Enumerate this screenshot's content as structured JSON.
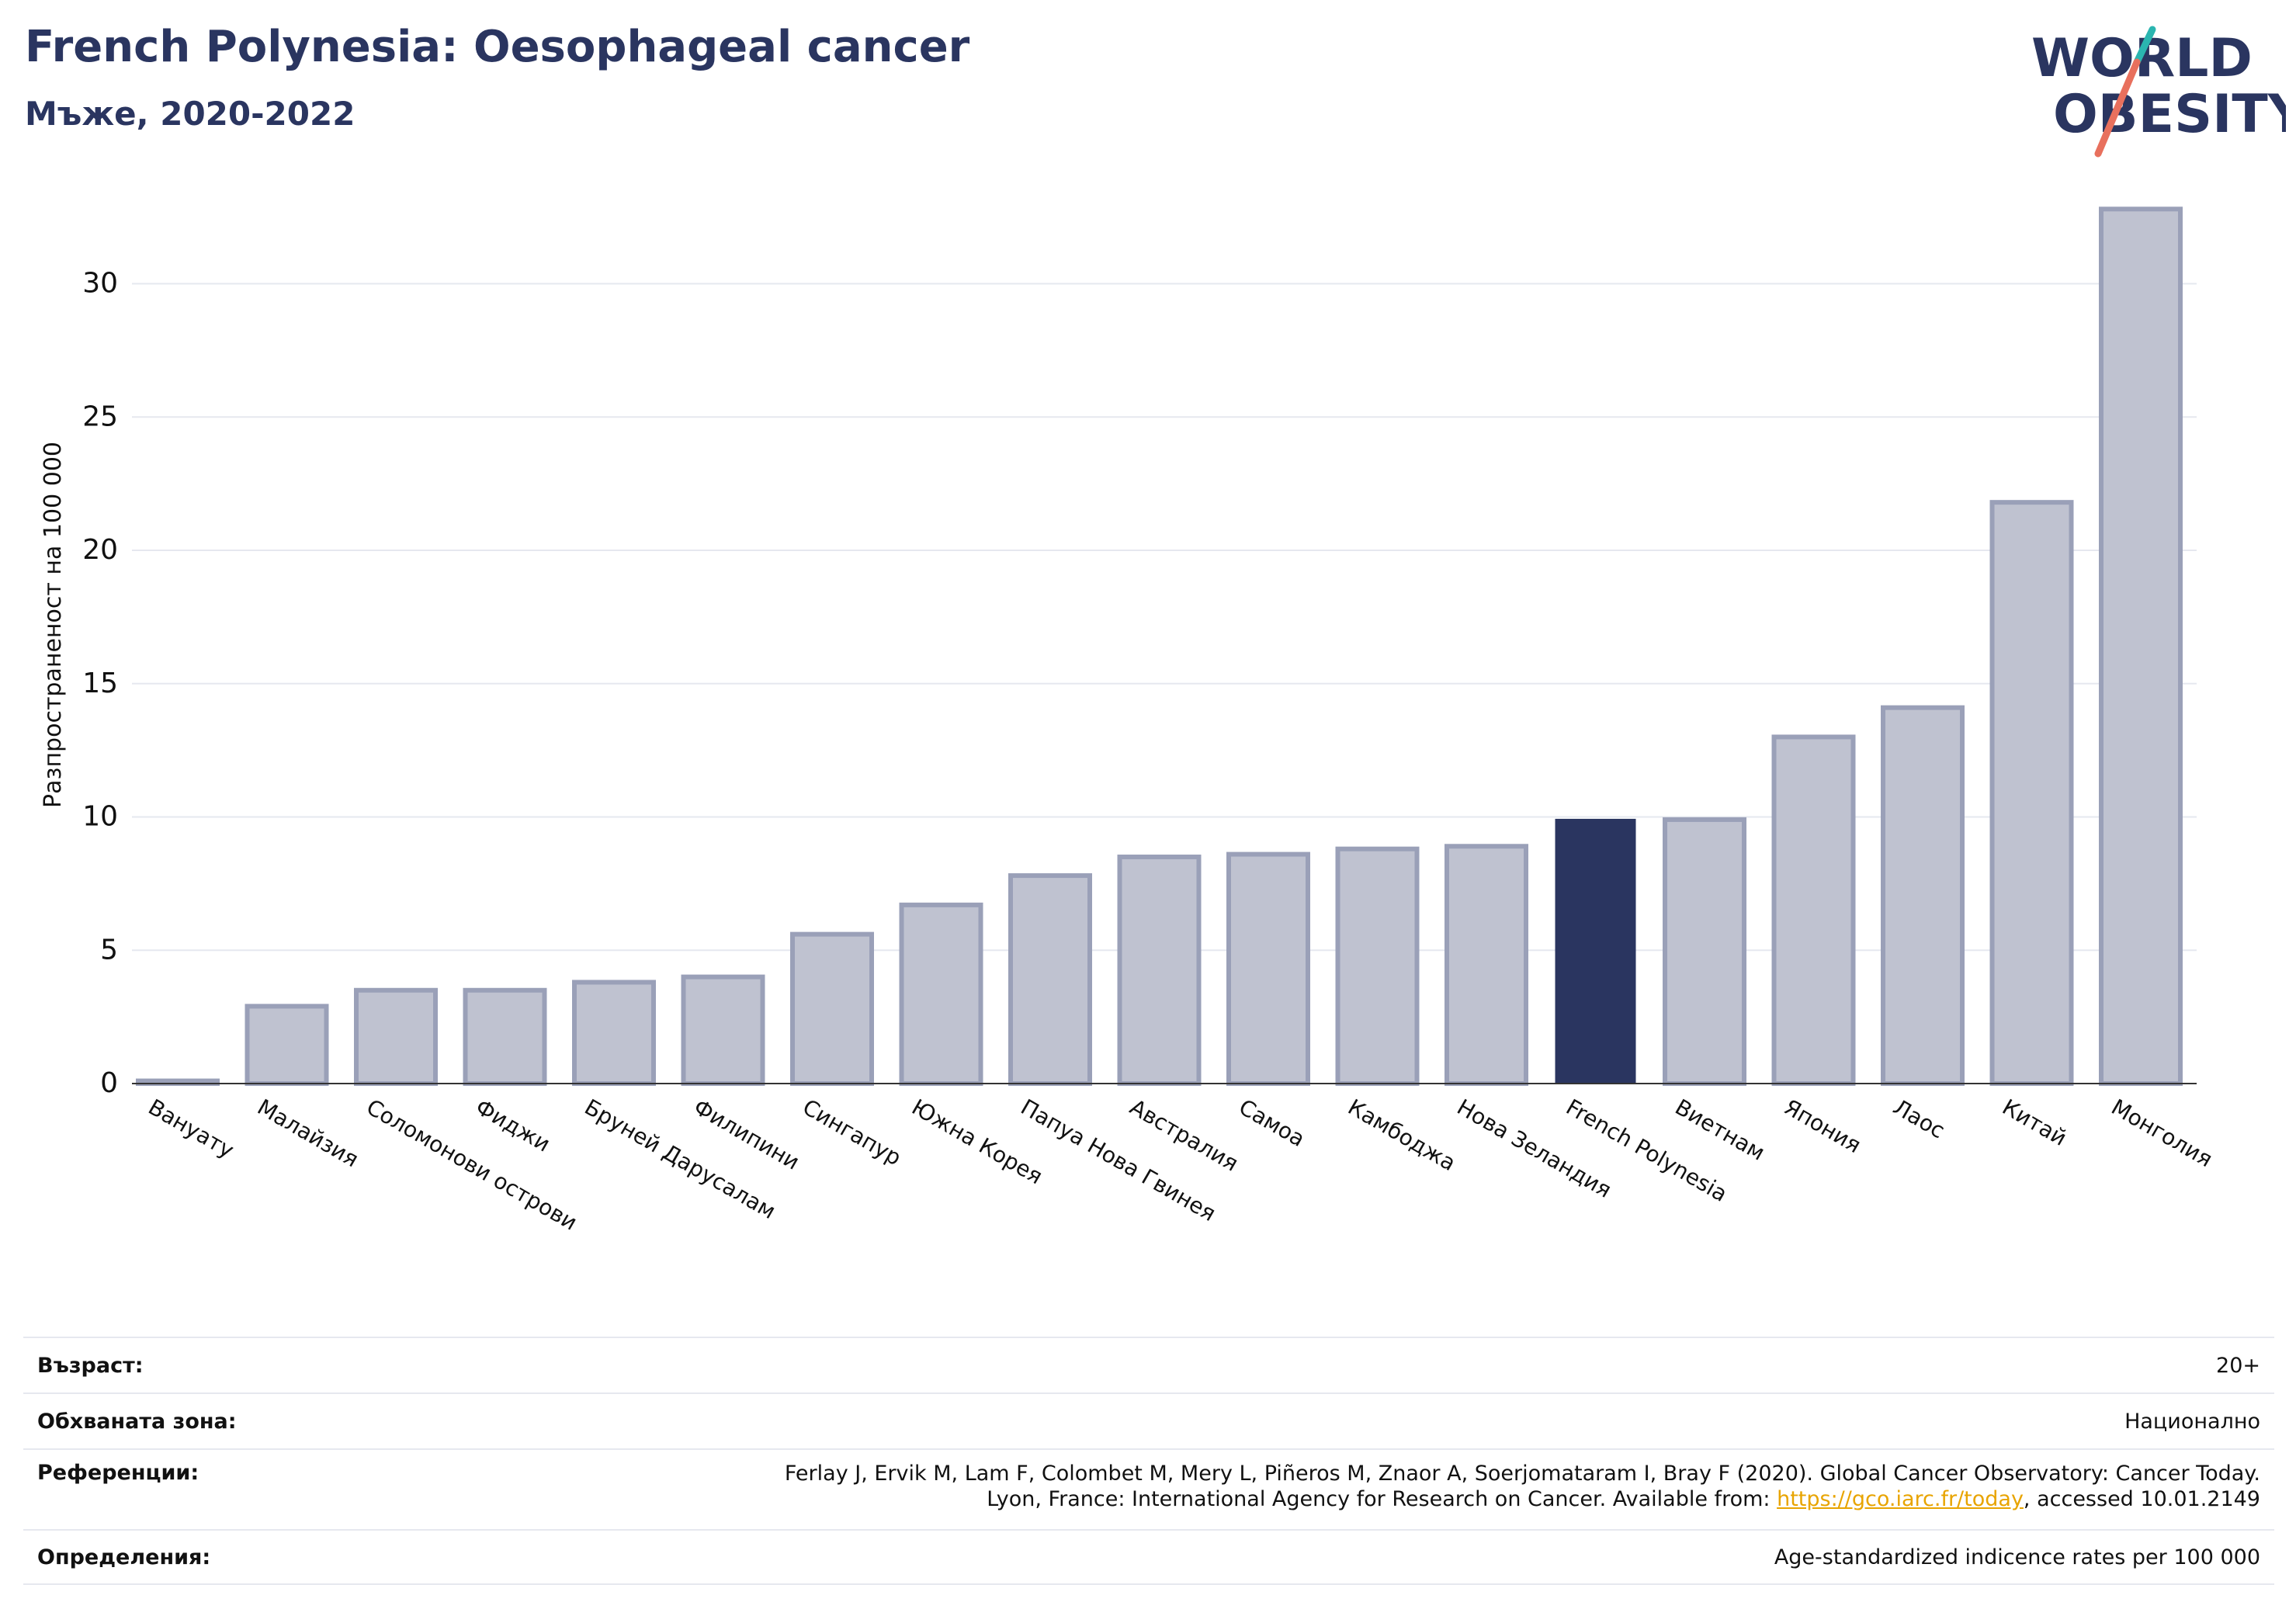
{
  "title": "French Polynesia: Oesophageal cancer",
  "subtitle": "Мъже, 2020-2022",
  "logo": {
    "line1": "WORLD",
    "line2": "OBESITY"
  },
  "colors": {
    "title": "#2a3560",
    "bar": "#bfc2d0",
    "bar_border": "#9aa0b8",
    "highlight": "#2a3560",
    "grid": "#e6e8ef",
    "logo_teal": "#2bb5b0",
    "logo_coral": "#e8705d",
    "link": "#e8a400"
  },
  "chart_data": {
    "type": "bar",
    "ylabel": "Разпространеност  на 100 000",
    "ylim": [
      0,
      33
    ],
    "yticks": [
      0,
      5,
      10,
      15,
      20,
      25,
      30
    ],
    "grid": true,
    "categories": [
      "Вануату",
      "Малайзия",
      "Соломонови острови",
      "Фиджи",
      "Бруней Дарусалам",
      "Филипини",
      "Сингапур",
      "Южна Корея",
      "Папуа Нова Гвинея",
      "Австралия",
      "Самоа",
      "Камбоджа",
      "Нова Зеландия",
      "French Polynesia",
      "Виетнам",
      "Япония",
      "Лаос",
      "Китай",
      "Монголия"
    ],
    "values": [
      0.1,
      2.9,
      3.5,
      3.5,
      3.8,
      4.0,
      5.6,
      6.7,
      7.8,
      8.5,
      8.6,
      8.8,
      8.9,
      9.9,
      9.9,
      13.0,
      14.1,
      21.8,
      32.8
    ],
    "highlight": "French Polynesia"
  },
  "info": {
    "age_label": "Възраст:",
    "age_value": "20+",
    "area_label": "Обхваната зона:",
    "area_value": "Национално",
    "ref_label": "Референции:",
    "ref_line1": "Ferlay J, Ervik M, Lam F, Colombet M, Mery L, Piñeros M, Znaor A, Soerjomataram I, Bray F (2020). Global Cancer Observatory: Cancer Today.",
    "ref_line2_pre": "Lyon, France: International Agency for Research on Cancer. Available from: ",
    "ref_link": "https://gco.iarc.fr/today",
    "ref_line2_post": ", accessed 10.01.2149",
    "def_label": "Определения:",
    "def_value": "Age-standardized indicence rates per 100 000"
  }
}
